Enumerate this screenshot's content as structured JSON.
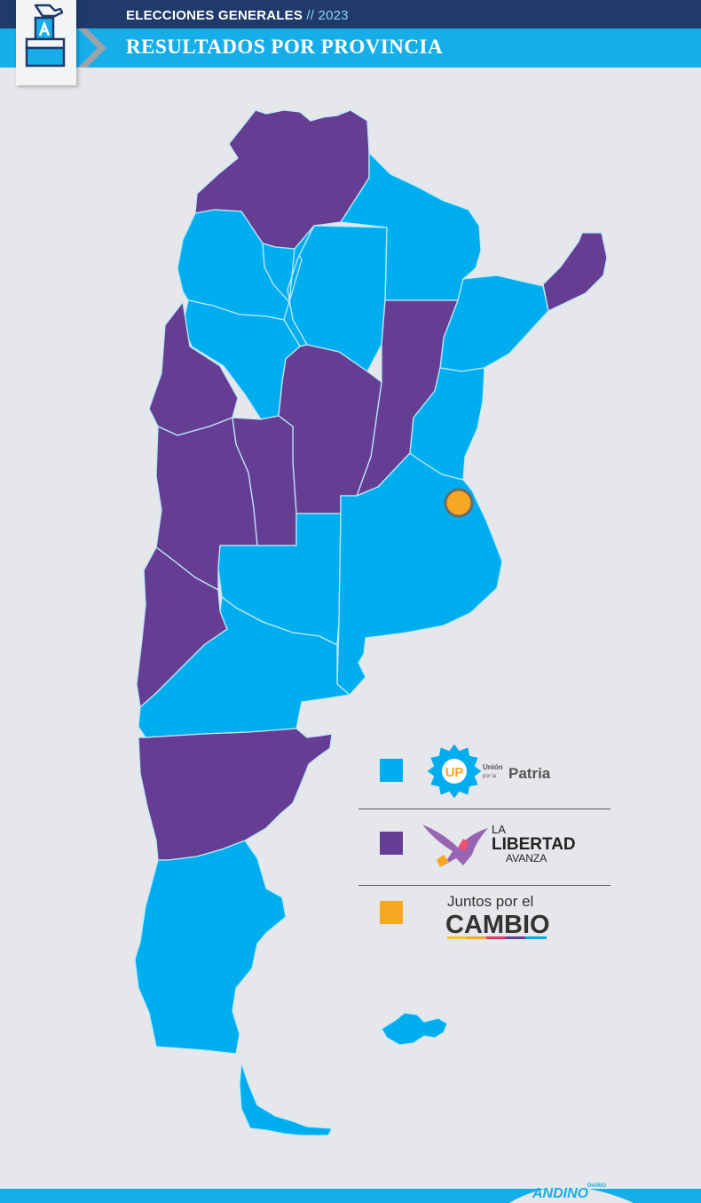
{
  "header": {
    "kicker": "ELECCIONES GENERALES",
    "separator": "//",
    "year": "2023",
    "title": "RESULTADOS POR PROVINCIA",
    "icon": "ballot-box-icon"
  },
  "colors": {
    "union_por_la_patria": "#00aeef",
    "la_libertad_avanza": "#653e93",
    "juntos_por_el_cambio": "#f7a823",
    "background": "#e6e7ea",
    "header_dark": "#1f3a6b",
    "header_light": "#15aee8"
  },
  "legend": [
    {
      "party": "Unión por la Patria",
      "logo_texts": [
        "UP",
        "Unión",
        "por la",
        "Patria"
      ],
      "color": "#00aeef"
    },
    {
      "party": "La Libertad Avanza",
      "logo_texts": [
        "LA",
        "LIBERTAD",
        "AVANZA"
      ],
      "color": "#653e93"
    },
    {
      "party": "Juntos por el Cambio",
      "logo_texts": [
        "Juntos por el",
        "CAMBIO"
      ],
      "color": "#f7a823"
    }
  ],
  "footer": {
    "brand": "ANDINO",
    "brand_small": "DIARIO"
  }
}
